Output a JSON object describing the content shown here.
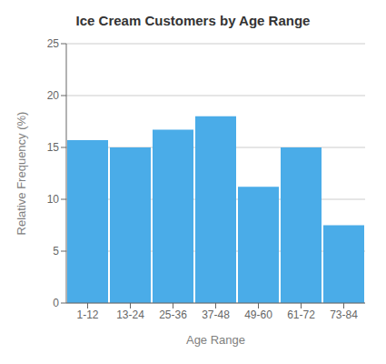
{
  "chart_data": {
    "type": "bar",
    "title": "Ice Cream Customers by Age Range",
    "xlabel": "Age Range",
    "ylabel": "Relative Frequency (%)",
    "categories": [
      "1-12",
      "13-24",
      "25-36",
      "37-48",
      "49-60",
      "61-72",
      "73-84"
    ],
    "values": [
      15.7,
      15.0,
      16.7,
      18.0,
      11.2,
      15.0,
      7.5
    ],
    "color": "#4AACE8",
    "ylim": [
      0,
      25
    ],
    "yticks": [
      0,
      5,
      10,
      15,
      20,
      25
    ],
    "grid": true
  }
}
